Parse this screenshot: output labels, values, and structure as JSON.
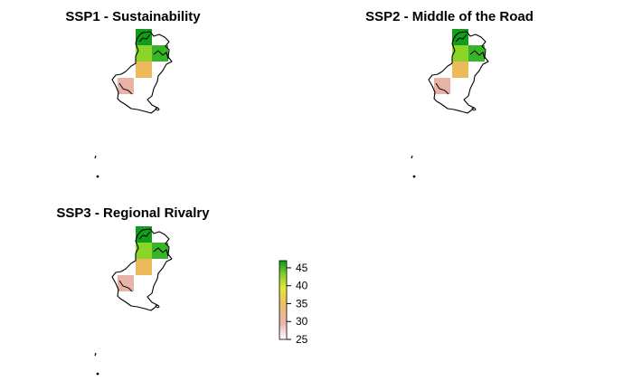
{
  "panels": [
    {
      "title": "SSP1 - Sustainability"
    },
    {
      "title": "SSP2 - Middle of the Road"
    },
    {
      "title": "SSP3 - Regional Rivalry"
    }
  ],
  "legend": {
    "ticks": [
      "45",
      "40",
      "35",
      "30",
      "25"
    ],
    "min": 25,
    "max": 47,
    "colors": [
      "#ffffff",
      "#e8b4b0",
      "#edbf63",
      "#e3e63a",
      "#8bd12a",
      "#0a9a1e"
    ]
  },
  "cell_colors": {
    "dark_green": "#139c1c",
    "mid_green": "#39b42a",
    "light_green": "#8bd42a",
    "orange": "#ecba5b",
    "pink": "#e8b3a6"
  }
}
